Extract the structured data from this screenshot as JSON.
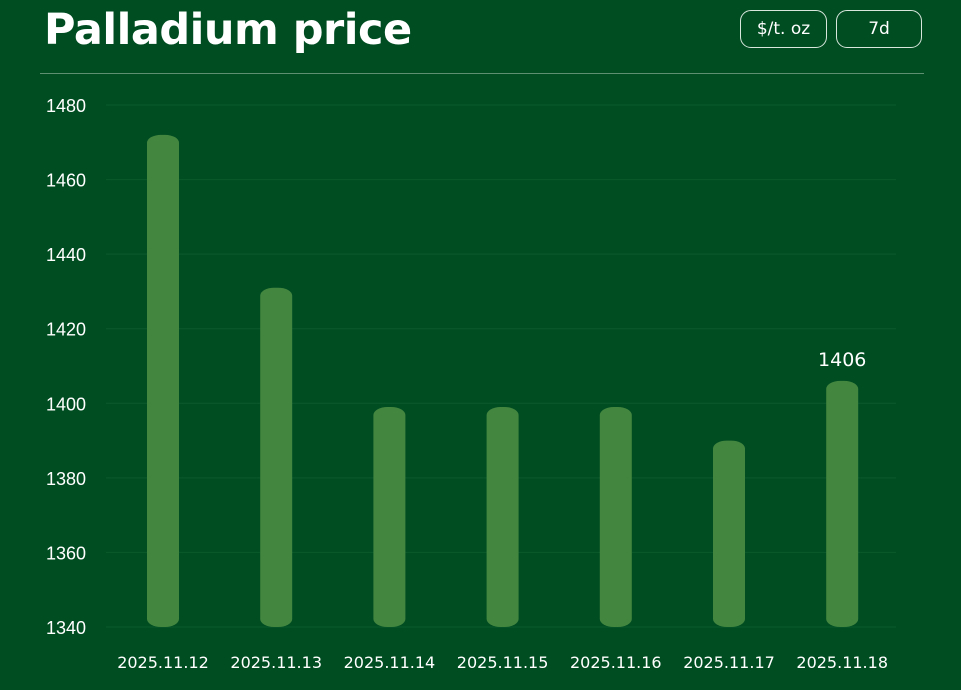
{
  "header": {
    "title": "Palladium price",
    "unit_label": "$/t. oz",
    "range_label": "7d"
  },
  "colors": {
    "background": "#004d22",
    "bar": "#43863f",
    "grid": "#0a5a2c"
  },
  "chart_data": {
    "type": "bar",
    "title": "Palladium price",
    "xlabel": "",
    "ylabel": "",
    "categories": [
      "2025.11.12",
      "2025.11.13",
      "2025.11.14",
      "2025.11.15",
      "2025.11.16",
      "2025.11.17",
      "2025.11.18"
    ],
    "values": [
      1472,
      1431,
      1399,
      1399,
      1399,
      1390,
      1406
    ],
    "ylim": [
      1340,
      1480
    ],
    "yticks": [
      1340,
      1360,
      1380,
      1400,
      1420,
      1440,
      1460,
      1480
    ],
    "annotation": {
      "index": 6,
      "text": "1406"
    },
    "grid": true,
    "legend": "none"
  }
}
